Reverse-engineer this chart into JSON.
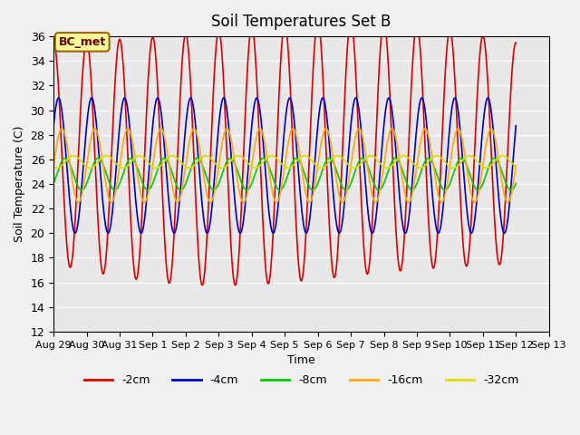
{
  "title": "Soil Temperatures Set B",
  "xlabel": "Time",
  "ylabel": "Soil Temperature (C)",
  "ylim": [
    12,
    36
  ],
  "yticks": [
    12,
    14,
    16,
    18,
    20,
    22,
    24,
    26,
    28,
    30,
    32,
    34,
    36
  ],
  "xtick_labels": [
    "Aug 29",
    "Aug 30",
    "Aug 31",
    "Sep 1",
    "Sep 2",
    "Sep 3",
    "Sep 4",
    "Sep 5",
    "Sep 6",
    "Sep 7",
    "Sep 8",
    "Sep 9",
    "Sep 10",
    "Sep 11",
    "Sep 12",
    "Sep 13"
  ],
  "n_days": 15,
  "background_color": "#e8e8e8",
  "grid_color": "#ffffff",
  "series": [
    {
      "label": "-2cm",
      "color": "#dd0000",
      "mean": 26.5,
      "amplitude": 9.0,
      "phase_shift": 0.0,
      "period": 1.0
    },
    {
      "label": "-4cm",
      "color": "#0000cc",
      "mean": 25.5,
      "amplitude": 5.5,
      "phase_shift": 0.15,
      "period": 1.0
    },
    {
      "label": "-8cm",
      "color": "#00cc00",
      "mean": 24.8,
      "amplitude": 1.3,
      "phase_shift": 0.35,
      "period": 1.0
    },
    {
      "label": "-16cm",
      "color": "#ffaa00",
      "mean": 25.5,
      "amplitude": 3.0,
      "phase_shift": 0.25,
      "period": 1.0
    },
    {
      "label": "-32cm",
      "color": "#dddd00",
      "mean": 25.8,
      "amplitude": 0.5,
      "phase_shift": 0.6,
      "period": 1.0
    }
  ],
  "legend_label": "BC_met",
  "legend_box_color": "#ffff99",
  "legend_box_edge": "#996600"
}
